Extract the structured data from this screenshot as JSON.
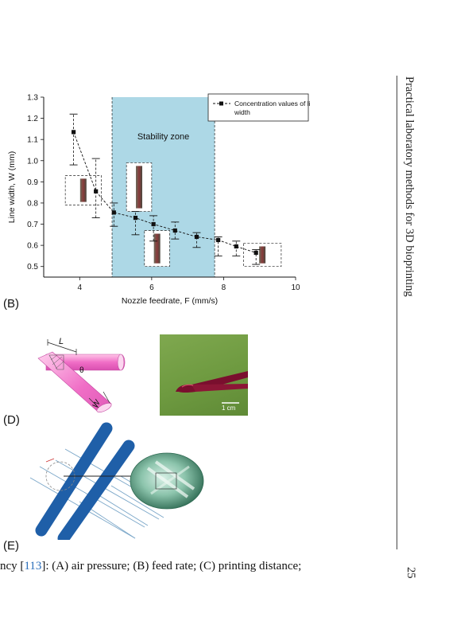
{
  "running_head": "Practical laboratory methods for 3D bioprinting",
  "page_number": "25",
  "caption": {
    "pre": "ncy [",
    "ref": "113",
    "post": "]: (A) air pressure; (B) feed rate; (C) printing distance;"
  },
  "panels": {
    "b": "(B)",
    "d": "(D)",
    "e": "(E)"
  },
  "figure_d": {
    "dim_L": "L",
    "dim_theta": "θ",
    "dim_W": "W",
    "scale_bar": "1 cm"
  },
  "chart_data": {
    "type": "scatter",
    "xlabel": "Nozzle feedrate, F (mm/s)",
    "ylabel": "Line width, W (mm)",
    "xlim": [
      3,
      10
    ],
    "ylim": [
      0.45,
      1.3
    ],
    "x_ticks": [
      "4",
      "6",
      "8",
      "10"
    ],
    "x_tick_values": [
      4,
      6,
      8,
      10
    ],
    "y_ticks": [
      "0.5",
      "0.6",
      "0.7",
      "0.8",
      "0.9",
      "1.0",
      "1.1",
      "1.2",
      "1.3"
    ],
    "y_tick_values": [
      0.5,
      0.6,
      0.7,
      0.8,
      0.9,
      1.0,
      1.1,
      1.2,
      1.3
    ],
    "shaded_region": {
      "label": "Stability zone",
      "x_range": [
        4.9,
        7.75
      ],
      "color": "#add8e6"
    },
    "series": [
      {
        "name": "Concentration values of line width",
        "x": [
          3.83,
          4.45,
          4.95,
          5.55,
          6.05,
          6.65,
          7.25,
          7.85,
          8.35,
          8.9
        ],
        "y": [
          1.135,
          0.855,
          0.755,
          0.73,
          0.7,
          0.67,
          0.64,
          0.625,
          0.595,
          0.565
        ],
        "err_low": [
          0.98,
          0.73,
          0.69,
          0.65,
          0.62,
          0.63,
          0.59,
          0.55,
          0.55,
          0.51
        ],
        "err_high": [
          1.22,
          1.01,
          0.8,
          0.76,
          0.74,
          0.71,
          0.66,
          0.64,
          0.62,
          0.58
        ]
      }
    ],
    "grid": false,
    "legend_position": "top-right"
  }
}
